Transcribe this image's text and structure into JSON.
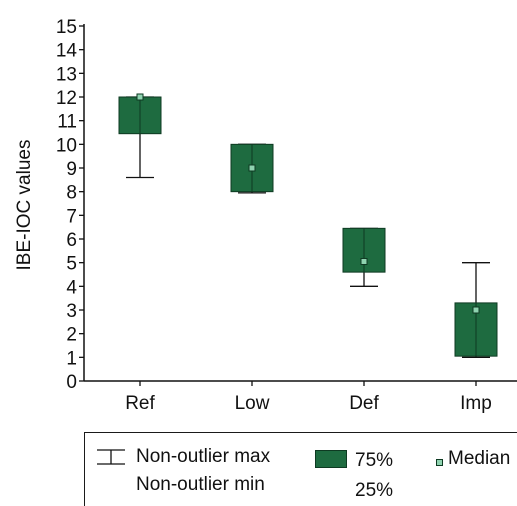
{
  "chart_data": {
    "type": "box",
    "ylabel": "IBE-IOC values",
    "xlabel": "",
    "ylim": [
      0,
      15
    ],
    "yticks": [
      0,
      1,
      2,
      3,
      4,
      5,
      6,
      7,
      8,
      9,
      10,
      11,
      12,
      13,
      14,
      15
    ],
    "categories": [
      "Ref",
      "Low",
      "Def",
      "Imp"
    ],
    "boxes": [
      {
        "category": "Ref",
        "min": 8.6,
        "q1": 10.45,
        "median": 12.0,
        "q3": 12.0,
        "max": 12.0
      },
      {
        "category": "Low",
        "min": 7.95,
        "q1": 8.0,
        "median": 9.0,
        "q3": 10.0,
        "max": 10.0
      },
      {
        "category": "Def",
        "min": 4.0,
        "q1": 4.6,
        "median": 5.05,
        "q3": 6.45,
        "max": 6.45
      },
      {
        "category": "Imp",
        "min": 1.0,
        "q1": 1.05,
        "median": 3.0,
        "q3": 3.3,
        "max": 5.0
      }
    ],
    "box_color": "#1e6b40",
    "median_marker_color": "#8fd3b0",
    "grid": false
  },
  "legend": {
    "whisker_max": "Non-outlier max",
    "whisker_min": "Non-outlier min",
    "box_top": "75%",
    "box_bottom": "25%",
    "median": "Median"
  }
}
